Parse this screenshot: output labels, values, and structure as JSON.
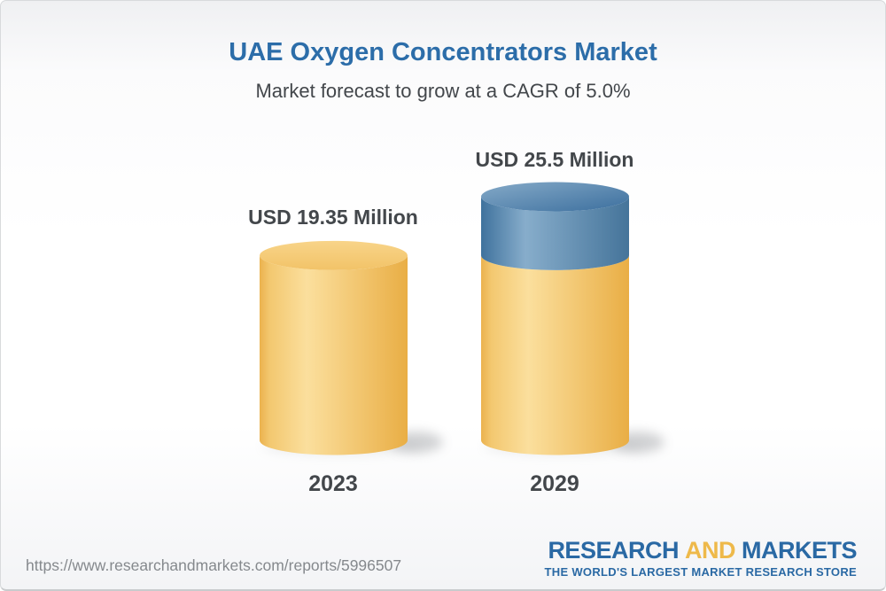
{
  "header": {
    "title": "UAE Oxygen Concentrators Market",
    "subtitle": "Market forecast to grow at a CAGR of 5.0%"
  },
  "chart_data": {
    "type": "bar",
    "style": "3d-cylinder",
    "title": "UAE Oxygen Concentrators Market",
    "subtitle": "Market forecast to grow at a CAGR of 5.0%",
    "cagr": "5.0%",
    "unit": "USD Million",
    "categories": [
      "2023",
      "2029"
    ],
    "values": [
      19.35,
      25.5
    ],
    "ylim": [
      0,
      25.5
    ],
    "grid": false,
    "legend": "none",
    "bars": [
      {
        "category": "2023",
        "value": 19.35,
        "value_label": "USD 19.35 Million",
        "segments": [
          {
            "name": "base",
            "value": 19.35,
            "color": "#F3C76F"
          }
        ]
      },
      {
        "category": "2029",
        "value": 25.5,
        "value_label": "USD 25.5 Million",
        "segments": [
          {
            "name": "base",
            "value": 19.35,
            "color": "#F3C76F"
          },
          {
            "name": "growth",
            "value": 6.15,
            "color": "#5D8DB5"
          }
        ]
      }
    ],
    "colors": {
      "base_cylinder": "#F3C76F",
      "growth_cylinder": "#5D8DB5"
    }
  },
  "footer": {
    "url": "https://www.researchandmarkets.com/reports/5996507",
    "logo": {
      "part1": "RESEARCH",
      "part2": "AND",
      "part3": "MARKETS",
      "tagline": "THE WORLD'S LARGEST MARKET RESEARCH STORE"
    }
  }
}
